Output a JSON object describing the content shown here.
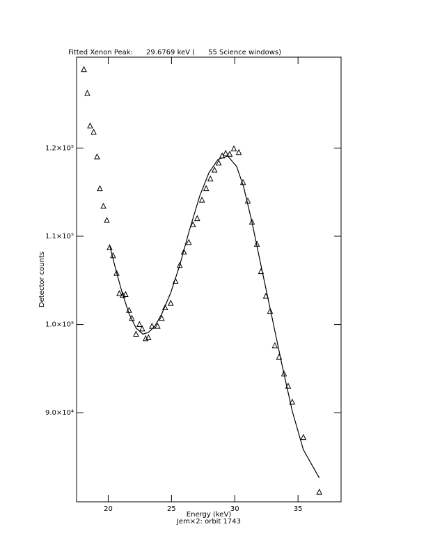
{
  "chart_data": {
    "type": "scatter",
    "title": "Fitted Xenon Peak:      29.6769 keV (      55 Science windows)",
    "x_label": "Energy (keV)",
    "subtitle": "Jem×2: orbit 1743",
    "y_label": "Detector counts",
    "xlim": [
      17.5,
      38.4
    ],
    "ylim": [
      79900,
      130300
    ],
    "xticks": [
      20,
      25,
      30,
      35
    ],
    "yticks": [
      {
        "value": 90000,
        "label": "9.0×10⁴"
      },
      {
        "value": 100000,
        "label": "1.0×10⁵"
      },
      {
        "value": 110000,
        "label": "1.1×10⁵"
      },
      {
        "value": 120000,
        "label": "1.2×10⁵"
      }
    ],
    "color": "#000000",
    "points": {
      "x": [
        18.08,
        18.35,
        18.57,
        18.85,
        19.12,
        19.34,
        19.62,
        19.89,
        20.11,
        20.38,
        20.66,
        20.88,
        21.15,
        21.37,
        21.65,
        21.87,
        22.2,
        22.47,
        22.69,
        22.96,
        23.18,
        23.46,
        23.9,
        24.23,
        24.5,
        24.94,
        25.32,
        25.65,
        25.98,
        26.37,
        26.7,
        27.03,
        27.41,
        27.74,
        28.07,
        28.4,
        28.73,
        29.0,
        29.28,
        29.6,
        29.93,
        30.32,
        30.65,
        31.03,
        31.36,
        31.75,
        32.07,
        32.46,
        32.79,
        33.17,
        33.5,
        33.89,
        34.22,
        34.54,
        35.42,
        36.68
      ],
      "values": [
        128900,
        126200,
        122500,
        121800,
        119000,
        115400,
        113400,
        111800,
        108700,
        107800,
        105800,
        103500,
        103300,
        103400,
        101600,
        100700,
        98900,
        100000,
        99500,
        98400,
        98500,
        99800,
        99800,
        100700,
        101900,
        102400,
        104900,
        106700,
        108200,
        109300,
        111300,
        112000,
        114100,
        115400,
        116500,
        117500,
        118300,
        119100,
        119400,
        119300,
        119900,
        119500,
        116100,
        114000,
        111600,
        109100,
        106000,
        103200,
        101500,
        97600,
        96300,
        94400,
        93000,
        91200,
        87200,
        81000
      ]
    },
    "fit": {
      "x": [
        20.11,
        20.55,
        21.1,
        21.65,
        22.2,
        22.74,
        23.18,
        23.68,
        24.23,
        24.94,
        25.65,
        26.42,
        27.24,
        27.96,
        28.67,
        29.44,
        30.15,
        30.7,
        31.36,
        32.07,
        32.9,
        33.72,
        34.54,
        35.42,
        36.68
      ],
      "values": [
        109000,
        106500,
        103600,
        101200,
        99600,
        98900,
        99100,
        99800,
        101200,
        103600,
        106700,
        110700,
        114600,
        117200,
        118700,
        119100,
        117900,
        115600,
        111600,
        106700,
        101100,
        95500,
        90200,
        85800,
        82600
      ]
    }
  }
}
